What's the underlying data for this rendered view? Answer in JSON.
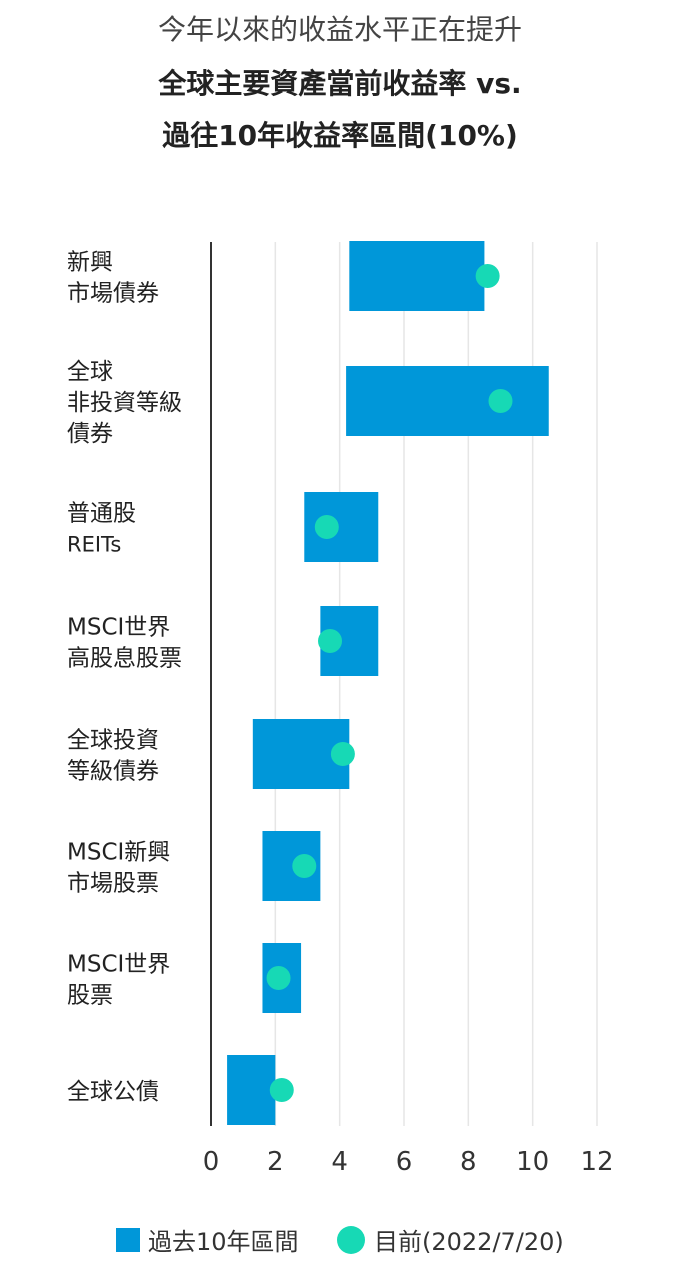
{
  "header": {
    "subtitle": "今年以來的收益水平正在提升",
    "title_line1": "全球主要資產當前收益率 vs.",
    "title_line2": "過往10年收益率區間(10%)"
  },
  "colors": {
    "range_bar": "#0097D9",
    "current_dot": "#17D9B5",
    "grid": "#e6e6e6",
    "axis": "#333333"
  },
  "chart_data": {
    "type": "bar",
    "orientation": "horizontal",
    "title": "全球主要資產當前收益率 vs. 過往10年收益率區間(10%)",
    "subtitle": "今年以來的收益水平正在提升",
    "xlim": [
      0,
      12
    ],
    "x_ticks": [
      "0",
      "2",
      "4",
      "6",
      "8",
      "10",
      "12"
    ],
    "grid": true,
    "legend_position": "bottom",
    "categories": [
      [
        "新興",
        "市場債券"
      ],
      [
        "全球",
        "非投資等級",
        "債券"
      ],
      [
        "普通股",
        "REITs"
      ],
      [
        "MSCI世界",
        "高股息股票"
      ],
      [
        "全球投資",
        "等級債券"
      ],
      [
        "MSCI新興",
        "市場股票"
      ],
      [
        "MSCI世界",
        "股票"
      ],
      [
        "全球公債"
      ]
    ],
    "series": [
      {
        "name": "過去10年區間",
        "kind": "range",
        "ranges": [
          [
            4.3,
            8.5
          ],
          [
            4.2,
            10.5
          ],
          [
            2.9,
            5.2
          ],
          [
            3.4,
            5.2
          ],
          [
            1.3,
            4.3
          ],
          [
            1.6,
            3.4
          ],
          [
            1.6,
            2.8
          ],
          [
            0.5,
            2.0
          ]
        ]
      },
      {
        "name": "目前(2022/7/20)",
        "kind": "point",
        "values": [
          8.6,
          9.0,
          3.6,
          3.7,
          4.1,
          2.9,
          2.1,
          2.2
        ]
      }
    ]
  },
  "legend": {
    "range_label": "過去10年區間",
    "current_label": "目前(2022/7/20)"
  }
}
